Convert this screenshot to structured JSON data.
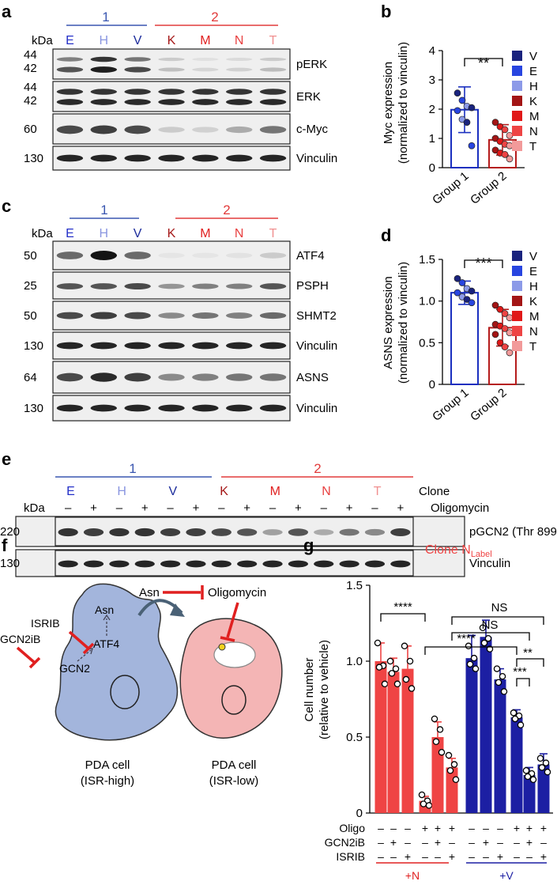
{
  "panels": {
    "a": {
      "letter": "a",
      "group1_label": "1",
      "group2_label": "2",
      "group1_color": "#3a56b0",
      "group2_color": "#e23b3b",
      "kda_label": "kDa",
      "lanes": [
        "E",
        "H",
        "V",
        "K",
        "M",
        "N",
        "T"
      ],
      "lane_colors": [
        "#2430c8",
        "#8a96e0",
        "#1c2c9c",
        "#a51818",
        "#e02020",
        "#e84040",
        "#f09090"
      ],
      "rows": [
        {
          "mw": [
            "44",
            "42"
          ],
          "label": "pERK"
        },
        {
          "mw": [
            "44",
            "42"
          ],
          "label": "ERK"
        },
        {
          "mw": [
            "60"
          ],
          "label": "c-Myc"
        },
        {
          "mw": [
            "130"
          ],
          "label": "Vinculin"
        }
      ]
    },
    "b": {
      "letter": "b",
      "ylabel_line1": "Myc expression",
      "ylabel_line2": "(normalized to vinculin)",
      "significance": "**"
    },
    "c": {
      "letter": "c",
      "group1_label": "1",
      "group2_label": "2",
      "kda_label": "kDa",
      "lanes": [
        "E",
        "H",
        "V",
        "K",
        "M",
        "N",
        "T"
      ],
      "rows": [
        {
          "mw": "50",
          "label": "ATF4"
        },
        {
          "mw": "25",
          "label": "PSPH"
        },
        {
          "mw": "50",
          "label": "SHMT2"
        },
        {
          "mw": "130",
          "label": "Vinculin"
        },
        {
          "mw": "64",
          "label": "ASNS"
        },
        {
          "mw": "130",
          "label": "Vinculin"
        }
      ]
    },
    "d": {
      "letter": "d",
      "ylabel_line1": "ASNS expression",
      "ylabel_line2": "(normalized to vinculin)",
      "significance": "***"
    },
    "e": {
      "letter": "e",
      "group1_label": "1",
      "group2_label": "2",
      "kda_label": "kDa",
      "clone_label": "Clone",
      "oligo_label": "Oligomycin",
      "clones": [
        "E",
        "H",
        "V",
        "K",
        "M",
        "N",
        "T"
      ],
      "signs": [
        "–",
        "+",
        "–",
        "+",
        "–",
        "+",
        "–",
        "+",
        "–",
        "+",
        "–",
        "+",
        "–",
        "+"
      ],
      "rows": [
        {
          "mw": "220",
          "label": "pGCN2 (Thr 899)"
        },
        {
          "mw": "130",
          "label": "Vinculin"
        }
      ]
    },
    "f": {
      "letter": "f",
      "asn_top": "Asn",
      "oligomycin": "Oligomycin",
      "isrib": "ISRIB",
      "gcn2ib": "GCN2iB",
      "asn_cell": "Asn",
      "atf4": "ATF4",
      "gcn2": "GCN2",
      "cell1_line1": "PDA cell",
      "cell1_line2": "(ISR-high)",
      "cell2_line1": "PDA cell",
      "cell2_line2": "(ISR-low)"
    },
    "g": {
      "letter": "g",
      "title_main": "Clone N",
      "title_sub": "Label",
      "ylabel_line1": "Cell number",
      "ylabel_line2": "(relative to vehicle)",
      "row_labels": [
        "Oligo",
        "GCN2iB",
        "ISRIB"
      ],
      "oligo_signs": [
        "–",
        "–",
        "–",
        "+",
        "+",
        "+",
        "–",
        "–",
        "–",
        "+",
        "+",
        "+"
      ],
      "gcn2ib_signs": [
        "–",
        "+",
        "–",
        "–",
        "+",
        "–",
        "–",
        "+",
        "–",
        "–",
        "+",
        "–"
      ],
      "isrib_signs": [
        "–",
        "–",
        "+",
        "–",
        "–",
        "+",
        "–",
        "–",
        "+",
        "–",
        "–",
        "+"
      ],
      "group_n": "+N",
      "group_v": "+V",
      "sig": [
        {
          "text": "****"
        },
        {
          "text": "****"
        },
        {
          "text": "NS"
        },
        {
          "text": "NS"
        },
        {
          "text": "**"
        },
        {
          "text": "***"
        }
      ]
    }
  },
  "legend": {
    "labels": [
      "V",
      "E",
      "H",
      "K",
      "M",
      "N",
      "T"
    ],
    "colors": [
      "#1a237e",
      "#2845e0",
      "#8c9ae8",
      "#a31515",
      "#e01818",
      "#ee4444",
      "#f29a9a"
    ]
  },
  "chart_data": [
    {
      "panel": "b",
      "type": "bar",
      "categories": [
        "Group 1",
        "Group 2"
      ],
      "values": [
        1.98,
        0.95
      ],
      "errors": [
        0.78,
        0.52
      ],
      "points": [
        [
          2.55,
          2.3,
          2.1,
          2.05,
          1.95,
          1.65,
          1.55,
          0.75
        ],
        [
          1.55,
          1.4,
          1.3,
          1.1,
          1.0,
          0.9,
          0.8,
          0.75,
          0.6,
          0.5,
          0.45,
          0.3
        ]
      ],
      "bar_colors": [
        "#1a2fbf",
        "#b51c1c"
      ],
      "ylim": [
        0,
        4
      ],
      "yticks": [
        "0",
        "1",
        "2",
        "3",
        "4"
      ],
      "ylabel": "Myc expression (normalized to vinculin)"
    },
    {
      "panel": "d",
      "type": "bar",
      "categories": [
        "Group 1",
        "Group 2"
      ],
      "values": [
        1.1,
        0.68
      ],
      "errors": [
        0.14,
        0.22
      ],
      "points": [
        [
          1.27,
          1.22,
          1.15,
          1.12,
          1.1,
          1.05,
          1.02,
          0.98
        ],
        [
          0.95,
          0.9,
          0.85,
          0.8,
          0.72,
          0.7,
          0.67,
          0.62,
          0.6,
          0.5,
          0.45,
          0.38
        ]
      ],
      "bar_colors": [
        "#1a2fbf",
        "#b51c1c"
      ],
      "ylim": [
        0,
        1.5
      ],
      "yticks": [
        "0",
        "0.5",
        "1.0",
        "1.5"
      ],
      "ylabel": "ASNS expression (normalized to vinculin)"
    },
    {
      "panel": "g",
      "type": "bar",
      "values": [
        1.0,
        0.93,
        0.95,
        0.08,
        0.5,
        0.3,
        1.02,
        1.16,
        0.88,
        0.63,
        0.25,
        0.32
      ],
      "errors": [
        0.12,
        0.09,
        0.15,
        0.03,
        0.1,
        0.06,
        0.15,
        0.11,
        0.07,
        0.05,
        0.05,
        0.07
      ],
      "points": [
        [
          1.12,
          0.97,
          0.96,
          0.85
        ],
        [
          1.0,
          0.95,
          0.92,
          0.85
        ],
        [
          1.1,
          1.0,
          0.88,
          0.82
        ],
        [
          0.12,
          0.08,
          0.06,
          0.05
        ],
        [
          0.62,
          0.55,
          0.47,
          0.4
        ],
        [
          0.38,
          0.32,
          0.28,
          0.22
        ],
        [
          1.1,
          1.02,
          0.98,
          0.95
        ],
        [
          1.22,
          1.15,
          1.12,
          1.08
        ],
        [
          0.95,
          0.9,
          0.86,
          0.8
        ],
        [
          0.66,
          0.64,
          0.62,
          0.58
        ],
        [
          0.28,
          0.26,
          0.24,
          0.22
        ],
        [
          0.36,
          0.33,
          0.3,
          0.27
        ]
      ],
      "bar_colors": [
        "#ef4444",
        "#ef4444",
        "#ef4444",
        "#ef4444",
        "#ef4444",
        "#ef4444",
        "#1c1fa3",
        "#1c1fa3",
        "#1c1fa3",
        "#1c1fa3",
        "#1c1fa3",
        "#1c1fa3"
      ],
      "ylim": [
        0,
        1.5
      ],
      "yticks": [
        "0",
        "0.5",
        "1.0",
        "1.5"
      ],
      "ylabel": "Cell number (relative to vehicle)"
    }
  ]
}
